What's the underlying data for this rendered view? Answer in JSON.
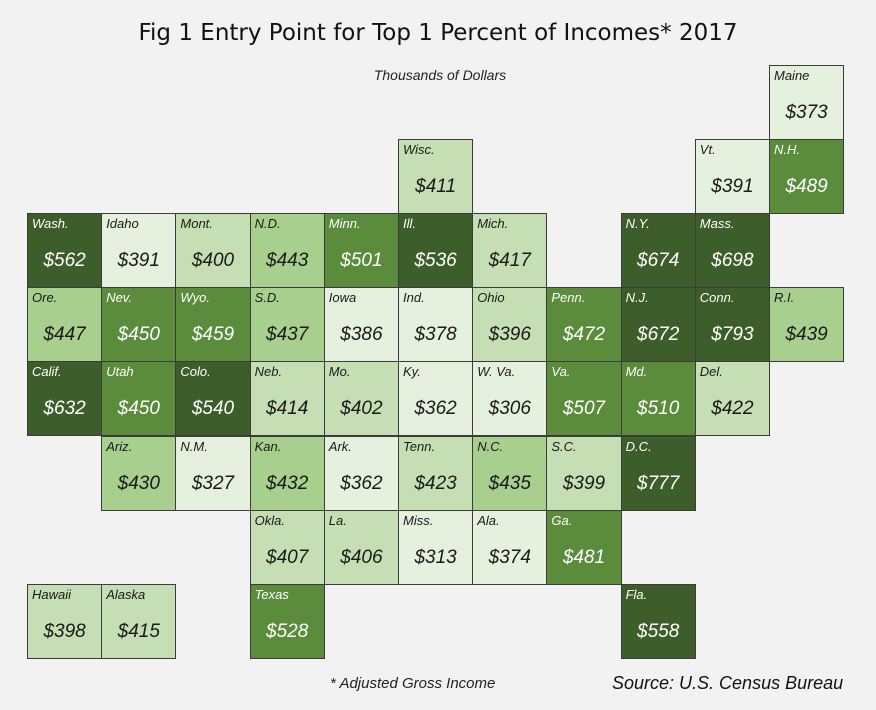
{
  "title": "Fig 1 Entry Point for Top 1 Percent of Incomes* 2017",
  "subtitle": "Thousands of Dollars",
  "footnote": "*  Adjusted Gross Income",
  "source": "Source: U.S. Census Bureau",
  "colors": {
    "background": "#f2f2f2",
    "scale": [
      "#e6f0df",
      "#c5deb3",
      "#a8cf8e",
      "#5a8c3c",
      "#3d5e2a"
    ],
    "border": "#3b3b3b"
  },
  "chart_data": {
    "type": "heatmap",
    "layout": "tile grid map of U.S. states",
    "unit": "Thousands of Dollars",
    "tiles": [
      {
        "label": "Maine",
        "value": "$373",
        "row": 0,
        "col": 10
      },
      {
        "label": "Wisc.",
        "value": "$411",
        "row": 1,
        "col": 5
      },
      {
        "label": "Vt.",
        "value": "$391",
        "row": 1,
        "col": 9
      },
      {
        "label": "N.H.",
        "value": "$489",
        "row": 1,
        "col": 10
      },
      {
        "label": "Wash.",
        "value": "$562",
        "row": 2,
        "col": 0
      },
      {
        "label": "Idaho",
        "value": "$391",
        "row": 2,
        "col": 1
      },
      {
        "label": "Mont.",
        "value": "$400",
        "row": 2,
        "col": 2
      },
      {
        "label": "N.D.",
        "value": "$443",
        "row": 2,
        "col": 3
      },
      {
        "label": "Minn.",
        "value": "$501",
        "row": 2,
        "col": 4
      },
      {
        "label": "Ill.",
        "value": "$536",
        "row": 2,
        "col": 5
      },
      {
        "label": "Mich.",
        "value": "$417",
        "row": 2,
        "col": 6
      },
      {
        "label": "N.Y.",
        "value": "$674",
        "row": 2,
        "col": 8
      },
      {
        "label": "Mass.",
        "value": "$698",
        "row": 2,
        "col": 9
      },
      {
        "label": "Ore.",
        "value": "$447",
        "row": 3,
        "col": 0
      },
      {
        "label": "Nev.",
        "value": "$450",
        "row": 3,
        "col": 1
      },
      {
        "label": "Wyo.",
        "value": "$459",
        "row": 3,
        "col": 2
      },
      {
        "label": "S.D.",
        "value": "$437",
        "row": 3,
        "col": 3
      },
      {
        "label": "Iowa",
        "value": "$386",
        "row": 3,
        "col": 4
      },
      {
        "label": "Ind.",
        "value": "$378",
        "row": 3,
        "col": 5
      },
      {
        "label": "Ohio",
        "value": "$396",
        "row": 3,
        "col": 6
      },
      {
        "label": "Penn.",
        "value": "$472",
        "row": 3,
        "col": 7
      },
      {
        "label": "N.J.",
        "value": "$672",
        "row": 3,
        "col": 8
      },
      {
        "label": "Conn.",
        "value": "$793",
        "row": 3,
        "col": 9
      },
      {
        "label": "R.I.",
        "value": "$439",
        "row": 3,
        "col": 10
      },
      {
        "label": "Calif.",
        "value": "$632",
        "row": 4,
        "col": 0
      },
      {
        "label": "Utah",
        "value": "$450",
        "row": 4,
        "col": 1
      },
      {
        "label": "Colo.",
        "value": "$540",
        "row": 4,
        "col": 2
      },
      {
        "label": "Neb.",
        "value": "$414",
        "row": 4,
        "col": 3
      },
      {
        "label": "Mo.",
        "value": "$402",
        "row": 4,
        "col": 4
      },
      {
        "label": "Ky.",
        "value": "$362",
        "row": 4,
        "col": 5
      },
      {
        "label": "W. Va.",
        "value": "$306",
        "row": 4,
        "col": 6
      },
      {
        "label": "Va.",
        "value": "$507",
        "row": 4,
        "col": 7
      },
      {
        "label": "Md.",
        "value": "$510",
        "row": 4,
        "col": 8
      },
      {
        "label": "Del.",
        "value": "$422",
        "row": 4,
        "col": 9
      },
      {
        "label": "Ariz.",
        "value": "$430",
        "row": 5,
        "col": 1
      },
      {
        "label": "N.M.",
        "value": "$327",
        "row": 5,
        "col": 2
      },
      {
        "label": "Kan.",
        "value": "$432",
        "row": 5,
        "col": 3
      },
      {
        "label": "Ark.",
        "value": "$362",
        "row": 5,
        "col": 4
      },
      {
        "label": "Tenn.",
        "value": "$423",
        "row": 5,
        "col": 5
      },
      {
        "label": "N.C.",
        "value": "$435",
        "row": 5,
        "col": 6
      },
      {
        "label": "S.C.",
        "value": "$399",
        "row": 5,
        "col": 7
      },
      {
        "label": "D.C.",
        "value": "$777",
        "row": 5,
        "col": 8
      },
      {
        "label": "Okla.",
        "value": "$407",
        "row": 6,
        "col": 3
      },
      {
        "label": "La.",
        "value": "$406",
        "row": 6,
        "col": 4
      },
      {
        "label": "Miss.",
        "value": "$313",
        "row": 6,
        "col": 5
      },
      {
        "label": "Ala.",
        "value": "$374",
        "row": 6,
        "col": 6
      },
      {
        "label": "Ga.",
        "value": "$481",
        "row": 6,
        "col": 7
      },
      {
        "label": "Hawaii",
        "value": "$398",
        "row": 7,
        "col": 0
      },
      {
        "label": "Alaska",
        "value": "$415",
        "row": 7,
        "col": 1
      },
      {
        "label": "Texas",
        "value": "$528",
        "row": 7,
        "col": 3
      },
      {
        "label": "Fla.",
        "value": "$558",
        "row": 7,
        "col": 8
      }
    ]
  }
}
